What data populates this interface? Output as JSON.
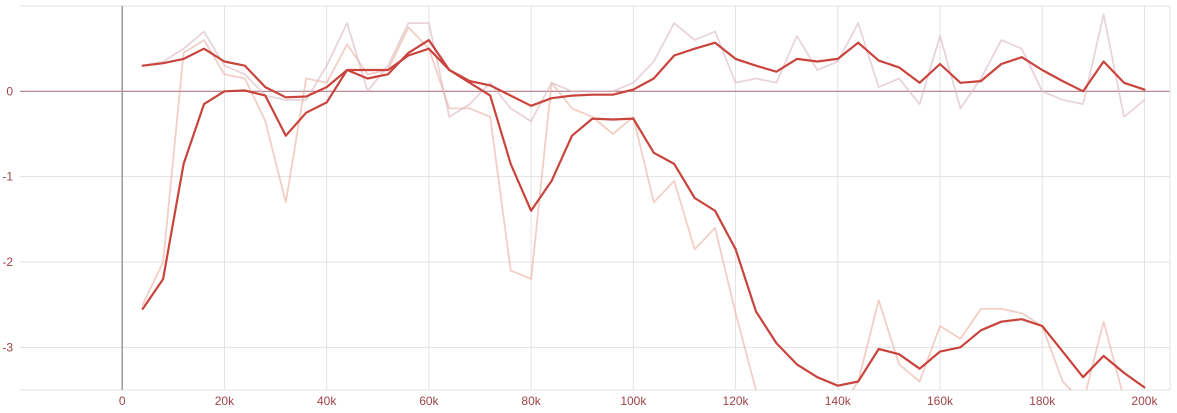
{
  "chart_data": {
    "type": "line",
    "title": "",
    "xlabel": "",
    "ylabel": "",
    "xlim": [
      -20000,
      205000
    ],
    "ylim": [
      -3.5,
      1.0
    ],
    "grid": true,
    "x_ticks": [
      {
        "value": 0,
        "label": "0"
      },
      {
        "value": 20000,
        "label": "20k"
      },
      {
        "value": 40000,
        "label": "40k"
      },
      {
        "value": 60000,
        "label": "60k"
      },
      {
        "value": 80000,
        "label": "80k"
      },
      {
        "value": 100000,
        "label": "100k"
      },
      {
        "value": 120000,
        "label": "120k"
      },
      {
        "value": 140000,
        "label": "140k"
      },
      {
        "value": 160000,
        "label": "160k"
      },
      {
        "value": 180000,
        "label": "180k"
      },
      {
        "value": 200000,
        "label": "200k"
      }
    ],
    "y_ticks": [
      {
        "value": 0,
        "label": "0"
      },
      {
        "value": -1,
        "label": "-1"
      },
      {
        "value": -2,
        "label": "-2"
      },
      {
        "value": -3,
        "label": "-3"
      }
    ],
    "series": [
      {
        "color": "#e8a898",
        "opacity": 0.55,
        "role": "raw",
        "x": [
          4000,
          8000,
          12000,
          16000,
          20000,
          24000,
          28000,
          32000,
          36000,
          40000,
          44000,
          48000,
          52000,
          56000,
          60000,
          64000,
          68000,
          72000,
          76000,
          80000,
          84000,
          88000,
          92000,
          96000,
          100000,
          104000,
          108000,
          112000,
          116000,
          120000,
          124000,
          128000,
          132000,
          136000,
          140000,
          144000,
          148000,
          152000,
          156000,
          160000,
          164000,
          168000,
          172000,
          176000,
          180000,
          184000,
          188000,
          192000,
          196000,
          200000
        ],
        "y": [
          -2.5,
          -2.0,
          0.45,
          0.6,
          0.2,
          0.15,
          -0.35,
          -1.3,
          0.15,
          0.1,
          0.55,
          0.2,
          0.25,
          0.75,
          0.5,
          -0.2,
          -0.2,
          -0.3,
          -2.1,
          -2.2,
          0.1,
          -0.2,
          -0.3,
          -0.5,
          -0.3,
          -1.3,
          -1.05,
          -1.85,
          -1.6,
          -2.6,
          -3.5,
          -3.8,
          -3.7,
          -3.8,
          -3.75,
          -3.4,
          -2.45,
          -3.2,
          -3.4,
          -2.75,
          -2.9,
          -2.55,
          -2.55,
          -2.6,
          -2.75,
          -3.4,
          -3.65,
          -2.7,
          -3.6,
          -3.6
        ]
      },
      {
        "color": "#d8b8c2",
        "opacity": 0.6,
        "role": "raw",
        "x": [
          4000,
          8000,
          12000,
          16000,
          20000,
          24000,
          28000,
          32000,
          36000,
          40000,
          44000,
          48000,
          52000,
          56000,
          60000,
          64000,
          68000,
          72000,
          76000,
          80000,
          84000,
          88000,
          92000,
          96000,
          100000,
          104000,
          108000,
          112000,
          116000,
          120000,
          124000,
          128000,
          132000,
          136000,
          140000,
          144000,
          148000,
          152000,
          156000,
          160000,
          164000,
          168000,
          172000,
          176000,
          180000,
          184000,
          188000,
          192000,
          196000,
          200000
        ],
        "y": [
          0.3,
          0.35,
          0.5,
          0.7,
          0.3,
          0.2,
          -0.05,
          -0.1,
          -0.1,
          0.3,
          0.8,
          0.0,
          0.3,
          0.8,
          0.8,
          -0.3,
          -0.15,
          0.1,
          -0.2,
          -0.35,
          0.1,
          0.0,
          0.0,
          0.0,
          0.1,
          0.35,
          0.8,
          0.6,
          0.7,
          0.1,
          0.15,
          0.1,
          0.65,
          0.25,
          0.35,
          0.8,
          0.05,
          0.15,
          -0.15,
          0.65,
          -0.2,
          0.15,
          0.6,
          0.5,
          0.0,
          -0.1,
          -0.15,
          0.9,
          -0.3,
          -0.1
        ]
      },
      {
        "color": "#c8443c",
        "opacity": 1,
        "role": "smoothed",
        "x": [
          4000,
          8000,
          12000,
          16000,
          20000,
          24000,
          28000,
          32000,
          36000,
          40000,
          44000,
          48000,
          52000,
          56000,
          60000,
          64000,
          68000,
          72000,
          76000,
          80000,
          84000,
          88000,
          92000,
          96000,
          100000,
          104000,
          108000,
          112000,
          116000,
          120000,
          124000,
          128000,
          132000,
          136000,
          140000,
          144000,
          148000,
          152000,
          156000,
          160000,
          164000,
          168000,
          172000,
          176000,
          180000,
          184000,
          188000,
          192000,
          196000,
          200000
        ],
        "y": [
          -2.55,
          -2.2,
          -0.85,
          -0.15,
          0.0,
          0.01,
          -0.05,
          -0.52,
          -0.25,
          -0.13,
          0.25,
          0.15,
          0.2,
          0.45,
          0.6,
          0.25,
          0.1,
          -0.05,
          -0.85,
          -1.4,
          -1.05,
          -0.52,
          -0.32,
          -0.33,
          -0.32,
          -0.72,
          -0.85,
          -1.25,
          -1.4,
          -1.85,
          -2.58,
          -2.95,
          -3.2,
          -3.35,
          -3.45,
          -3.4,
          -3.02,
          -3.08,
          -3.25,
          -3.05,
          -3.0,
          -2.8,
          -2.7,
          -2.67,
          -2.75,
          -3.05,
          -3.35,
          -3.1,
          -3.3,
          -3.47
        ]
      },
      {
        "color": "#c8443c",
        "opacity": 1,
        "role": "smoothed",
        "x": [
          4000,
          8000,
          12000,
          16000,
          20000,
          24000,
          28000,
          32000,
          36000,
          40000,
          44000,
          48000,
          52000,
          56000,
          60000,
          64000,
          68000,
          72000,
          76000,
          80000,
          84000,
          88000,
          92000,
          96000,
          100000,
          104000,
          108000,
          112000,
          116000,
          120000,
          124000,
          128000,
          132000,
          136000,
          140000,
          144000,
          148000,
          152000,
          156000,
          160000,
          164000,
          168000,
          172000,
          176000,
          180000,
          184000,
          188000,
          192000,
          196000,
          200000
        ],
        "y": [
          0.3,
          0.33,
          0.38,
          0.5,
          0.35,
          0.3,
          0.05,
          -0.07,
          -0.06,
          0.05,
          0.25,
          0.25,
          0.25,
          0.42,
          0.5,
          0.25,
          0.12,
          0.07,
          -0.05,
          -0.17,
          -0.08,
          -0.05,
          -0.04,
          -0.04,
          0.02,
          0.15,
          0.42,
          0.5,
          0.57,
          0.38,
          0.3,
          0.23,
          0.38,
          0.35,
          0.38,
          0.57,
          0.36,
          0.28,
          0.1,
          0.32,
          0.1,
          0.12,
          0.32,
          0.4,
          0.25,
          0.12,
          0.0,
          0.35,
          0.1,
          0.02
        ]
      }
    ]
  }
}
